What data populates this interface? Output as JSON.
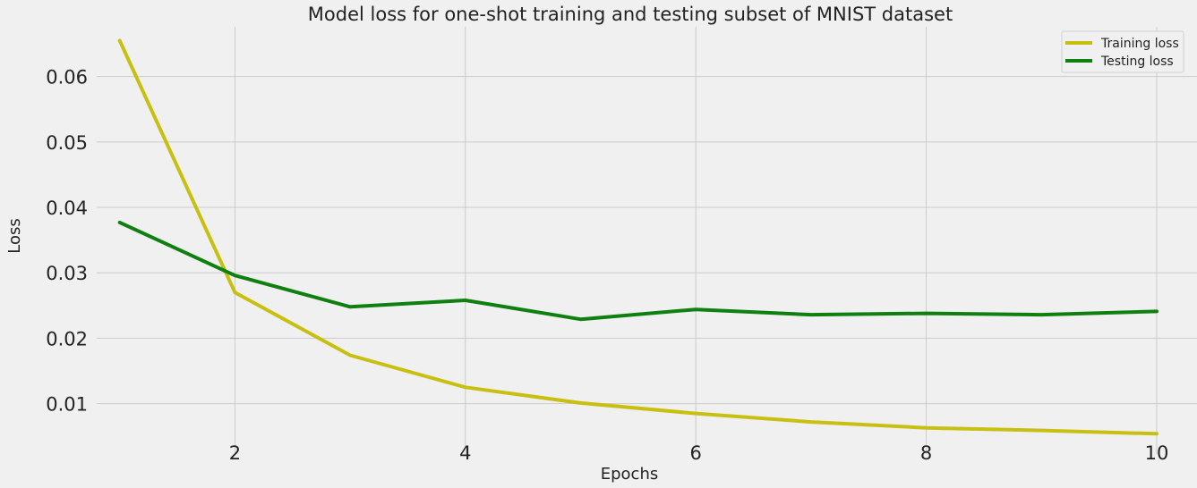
{
  "chart_data": {
    "type": "line",
    "title": "Model loss for one-shot training and testing subset of MNIST dataset",
    "xlabel": "Epochs",
    "ylabel": "Loss",
    "x": [
      1,
      2,
      3,
      4,
      5,
      6,
      7,
      8,
      9,
      10
    ],
    "xlim": [
      0.8,
      10.35
    ],
    "ylim": [
      0.0023,
      0.0676
    ],
    "xticks": [
      2,
      4,
      6,
      8,
      10
    ],
    "xtick_labels": [
      "2",
      "4",
      "6",
      "8",
      "10"
    ],
    "yticks": [
      0.01,
      0.02,
      0.03,
      0.04,
      0.05,
      0.06
    ],
    "ytick_labels": [
      "0.01",
      "0.02",
      "0.03",
      "0.04",
      "0.05",
      "0.06"
    ],
    "grid": true,
    "legend_position": "top-right",
    "series": [
      {
        "name": "Training loss",
        "color": "#c8c010",
        "values": [
          0.0655,
          0.027,
          0.0174,
          0.0125,
          0.0101,
          0.0085,
          0.0072,
          0.0063,
          0.0059,
          0.0054
        ]
      },
      {
        "name": "Testing loss",
        "color": "#0f7f0f",
        "values": [
          0.0377,
          0.0296,
          0.0248,
          0.0258,
          0.0229,
          0.0244,
          0.0236,
          0.0238,
          0.0236,
          0.0241
        ]
      }
    ]
  }
}
